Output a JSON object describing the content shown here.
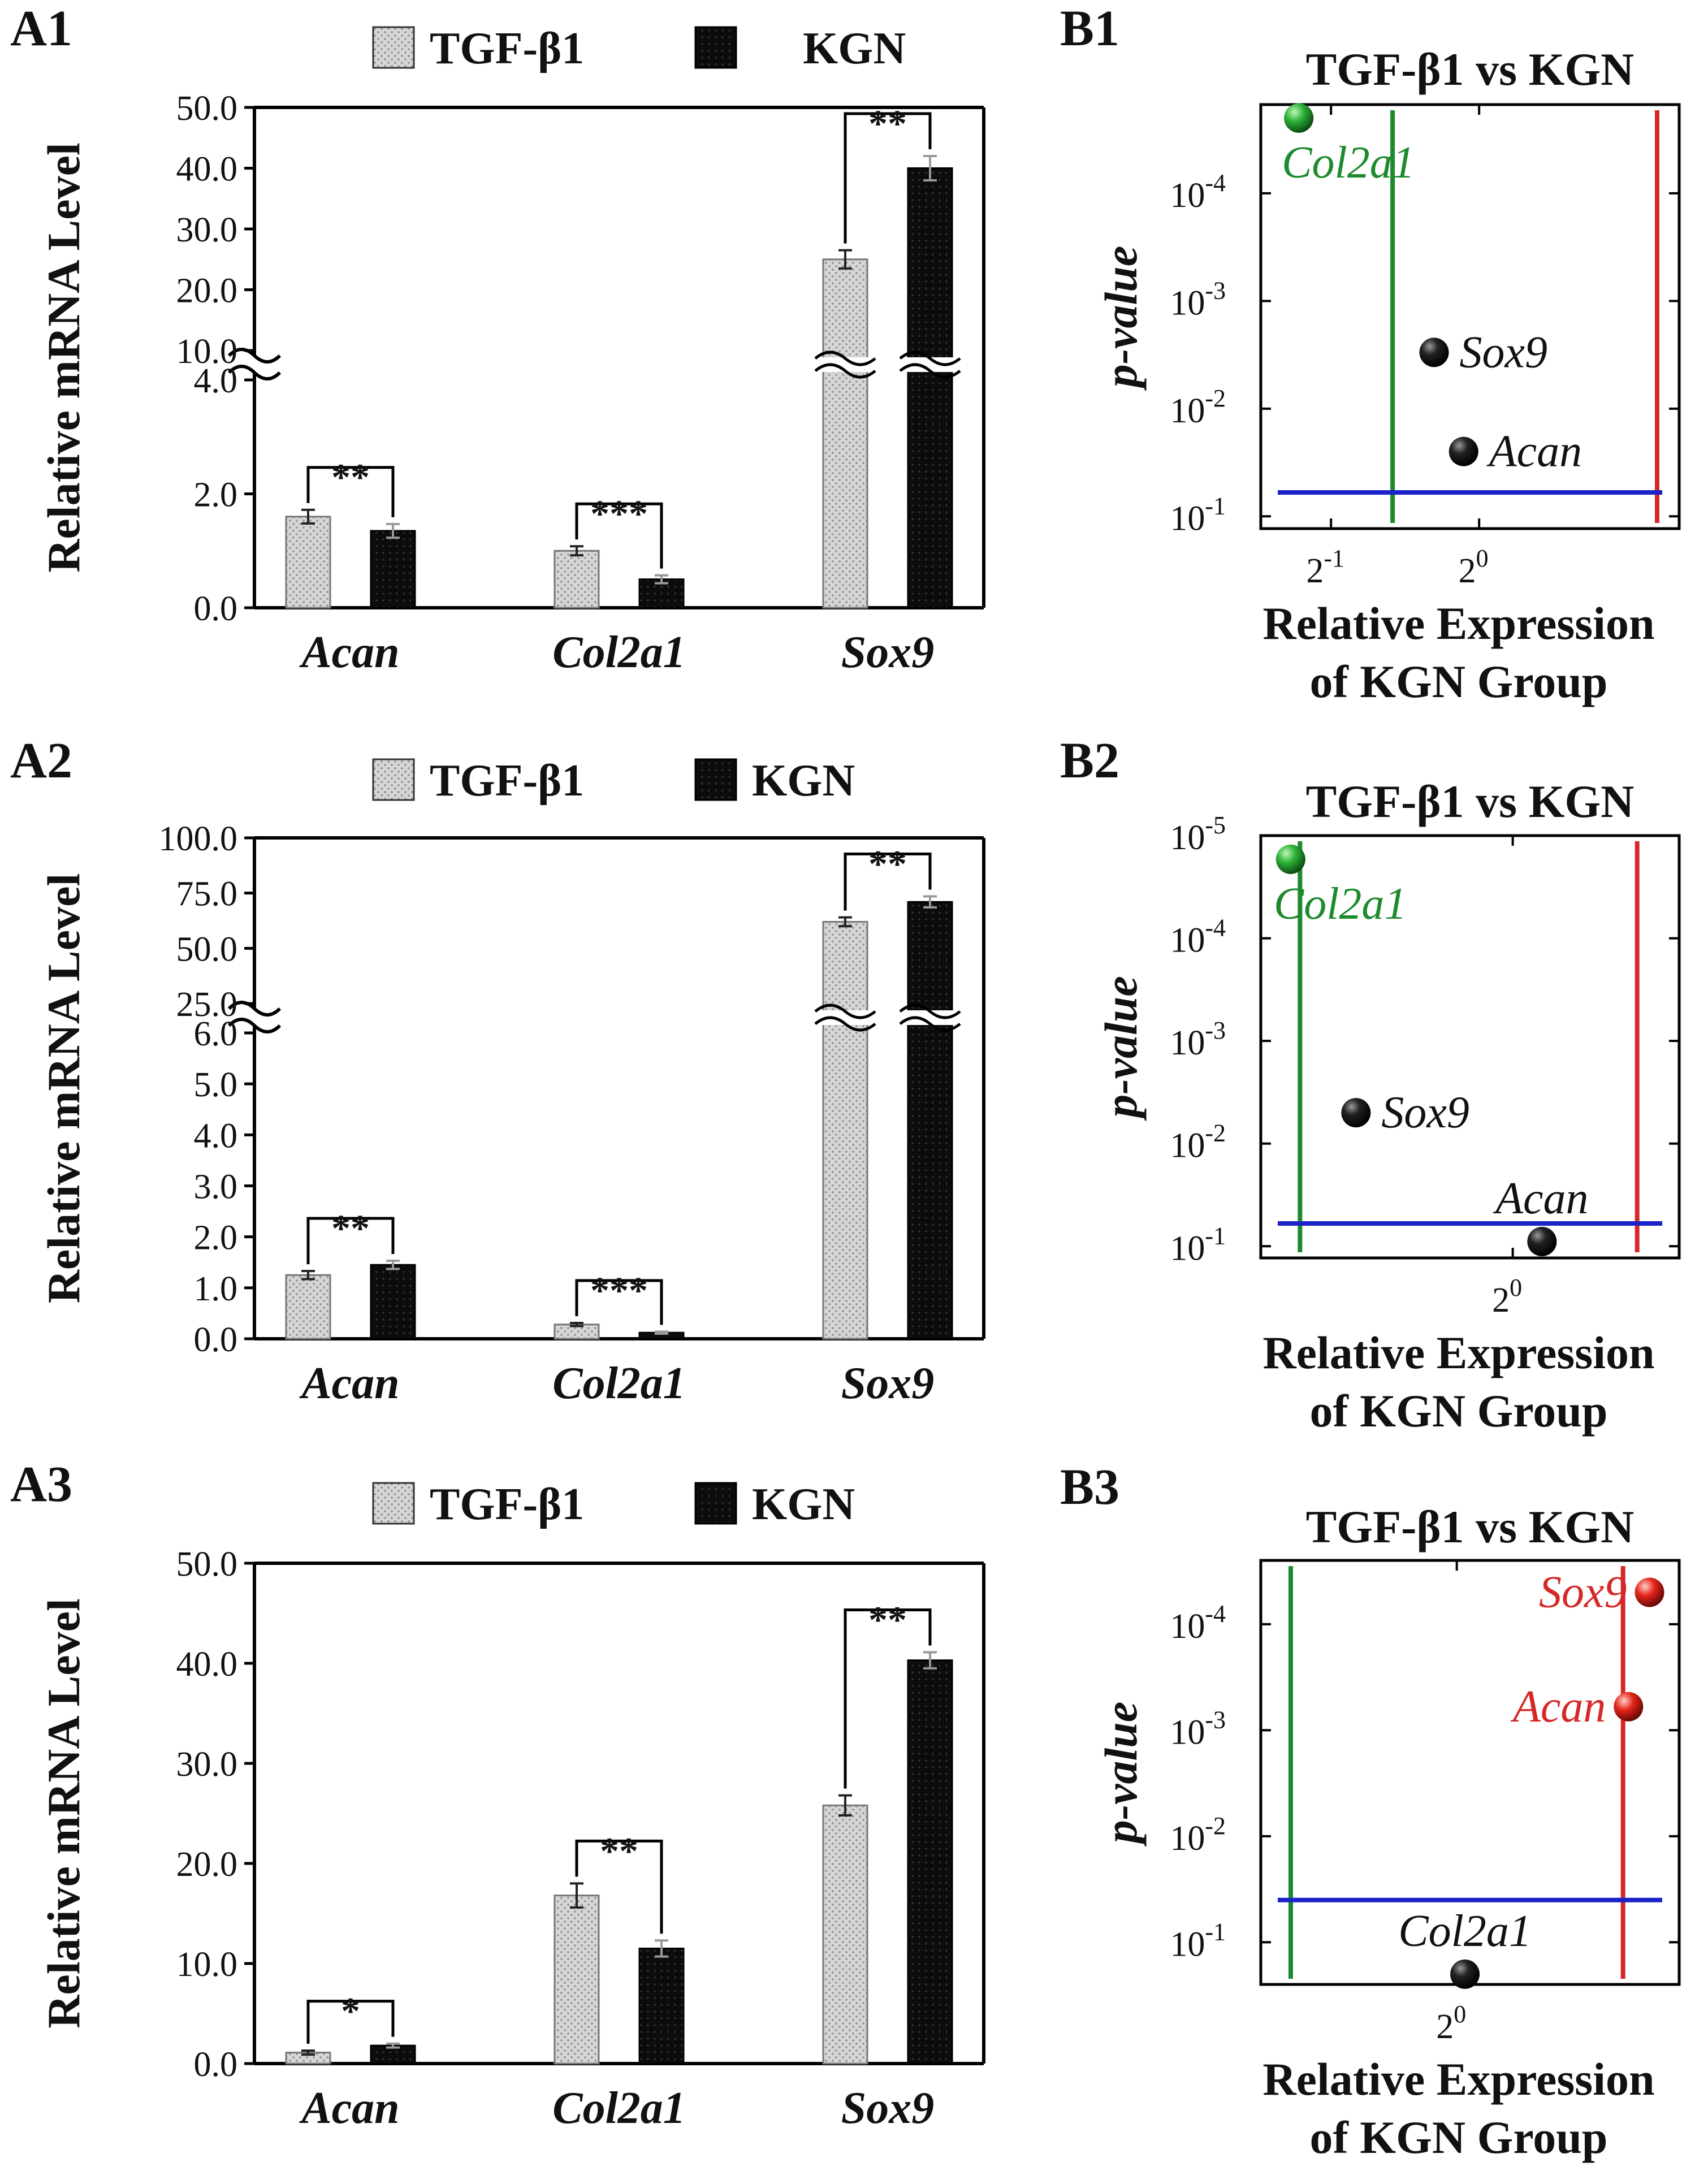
{
  "colors": {
    "tgf": "#cfcfcf",
    "kgn": "#111111",
    "green": "#1e8a2e",
    "red": "#d62828",
    "blue": "#1a22c8",
    "black_point": "#111111"
  },
  "chart_data": [
    {
      "id": "A1",
      "type": "bar",
      "panel_label": "A1",
      "ylabel": "Relative mRNA Level",
      "categories": [
        "Acan",
        "Col2a1",
        "Sox9"
      ],
      "legend": [
        "TGF-β1",
        "KGN"
      ],
      "series": [
        {
          "name": "TGF-β1",
          "values": [
            1.6,
            1.0,
            25.0
          ],
          "errors": [
            0.12,
            0.08,
            1.5
          ]
        },
        {
          "name": "KGN",
          "values": [
            1.35,
            0.5,
            40.0
          ],
          "errors": [
            0.12,
            0.07,
            2.0
          ]
        }
      ],
      "significance": [
        "**",
        "***",
        "**"
      ],
      "axis_break": true,
      "lower_ticks": [
        "0.0",
        "2.0",
        "4.0"
      ],
      "lower_range": [
        0,
        4
      ],
      "upper_ticks": [
        "10.0",
        "20.0",
        "30.0",
        "40.0",
        "50.0"
      ],
      "upper_range": [
        10,
        50
      ]
    },
    {
      "id": "A2",
      "type": "bar",
      "panel_label": "A2",
      "ylabel": "Relative mRNA Level",
      "categories": [
        "Acan",
        "Col2a1",
        "Sox9"
      ],
      "legend": [
        "TGF-β1",
        "KGN"
      ],
      "series": [
        {
          "name": "TGF-β1",
          "values": [
            1.25,
            0.28,
            62.0
          ],
          "errors": [
            0.08,
            0.03,
            2.0
          ]
        },
        {
          "name": "KGN",
          "values": [
            1.45,
            0.12,
            71.0
          ],
          "errors": [
            0.08,
            0.02,
            2.5
          ]
        }
      ],
      "significance": [
        "**",
        "***",
        "**"
      ],
      "axis_break": true,
      "lower_ticks": [
        "0.0",
        "1.0",
        "2.0",
        "3.0",
        "4.0",
        "5.0",
        "6.0"
      ],
      "lower_range": [
        0,
        6
      ],
      "upper_ticks": [
        "25.0",
        "50.0",
        "75.0",
        "100.0"
      ],
      "upper_range": [
        25,
        100
      ]
    },
    {
      "id": "A3",
      "type": "bar",
      "panel_label": "A3",
      "ylabel": "Relative mRNA Level",
      "categories": [
        "Acan",
        "Col2a1",
        "Sox9"
      ],
      "legend": [
        "TGF-β1",
        "KGN"
      ],
      "series": [
        {
          "name": "TGF-β1",
          "values": [
            1.1,
            16.8,
            25.8
          ],
          "errors": [
            0.2,
            1.2,
            1.0
          ]
        },
        {
          "name": "KGN",
          "values": [
            1.8,
            11.5,
            40.3
          ],
          "errors": [
            0.2,
            0.8,
            0.8
          ]
        }
      ],
      "significance": [
        "*",
        "**",
        "**"
      ],
      "axis_break": false,
      "ticks": [
        "0.0",
        "10.0",
        "20.0",
        "30.0",
        "40.0",
        "50.0"
      ],
      "ylim": [
        0,
        50
      ]
    },
    {
      "id": "B1",
      "type": "scatter",
      "panel_label": "B1",
      "title": "TGF-β1 vs KGN",
      "xlabel_line1": "Relative Expression",
      "xlabel_line2": "of KGN Group",
      "ylabel": "p-value",
      "x_scale": "log2",
      "y_scale": "log10 (reversed)",
      "xlim": [
        0.36,
        2.55
      ],
      "ylim": [
        1.5e-05,
        0.13
      ],
      "x_ticks": [
        {
          "value": 0.5,
          "base": "2",
          "exp": "-1"
        },
        {
          "value": 1,
          "base": "2",
          "exp": "0"
        }
      ],
      "y_ticks": [
        {
          "value": 0.1,
          "base": "10",
          "exp": "-1"
        },
        {
          "value": 0.01,
          "base": "10",
          "exp": "-2"
        },
        {
          "value": 0.001,
          "base": "10",
          "exp": "-3"
        },
        {
          "value": 0.0001,
          "base": "10",
          "exp": "-4"
        }
      ],
      "threshold_low_x": 0.667,
      "threshold_high_x": 2.3,
      "threshold_p": 0.06,
      "points": [
        {
          "name": "Col2a1",
          "x": 0.43,
          "p": 2e-05,
          "color": "green",
          "label_pos": "below"
        },
        {
          "name": "Sox9",
          "x": 0.81,
          "p": 0.003,
          "color": "black",
          "label_pos": "right"
        },
        {
          "name": "Acan",
          "x": 0.93,
          "p": 0.025,
          "color": "black",
          "label_pos": "right"
        }
      ]
    },
    {
      "id": "B2",
      "type": "scatter",
      "panel_label": "B2",
      "title": "TGF-β1 vs KGN",
      "xlabel_line1": "Relative Expression",
      "xlabel_line2": "of KGN Group",
      "ylabel": "p-value",
      "x_scale": "log2",
      "y_scale": "log10 (reversed)",
      "xlim": [
        0.44,
        1.72
      ],
      "ylim": [
        1e-05,
        0.13
      ],
      "x_ticks": [
        {
          "value": 1,
          "base": "2",
          "exp": "0"
        }
      ],
      "y_ticks": [
        {
          "value": 0.1,
          "base": "10",
          "exp": "-1"
        },
        {
          "value": 0.01,
          "base": "10",
          "exp": "-2"
        },
        {
          "value": 0.001,
          "base": "10",
          "exp": "-3"
        },
        {
          "value": 0.0001,
          "base": "10",
          "exp": "-4"
        },
        {
          "value": 1e-05,
          "base": "10",
          "exp": "-5"
        }
      ],
      "threshold_low_x": 0.5,
      "threshold_high_x": 1.5,
      "threshold_p": 0.06,
      "points": [
        {
          "name": "Col2a1",
          "x": 0.485,
          "p": 1.7e-05,
          "color": "green",
          "label_pos": "below"
        },
        {
          "name": "Sox9",
          "x": 0.6,
          "p": 0.005,
          "color": "black",
          "label_pos": "right"
        },
        {
          "name": "Acan",
          "x": 1.1,
          "p": 0.09,
          "color": "black",
          "label_pos": "above"
        }
      ]
    },
    {
      "id": "B3",
      "type": "scatter",
      "panel_label": "B3",
      "title": "TGF-β1 vs KGN",
      "xlabel_line1": "Relative Expression",
      "xlabel_line2": "of KGN Group",
      "ylabel": "p-value",
      "x_scale": "log2",
      "y_scale": "log10 (reversed)",
      "xlim": [
        0.62,
        1.72
      ],
      "ylim": [
        2.5e-05,
        0.25
      ],
      "x_ticks": [
        {
          "value": 1,
          "base": "2",
          "exp": "0"
        }
      ],
      "y_ticks": [
        {
          "value": 0.1,
          "base": "10",
          "exp": "-1"
        },
        {
          "value": 0.01,
          "base": "10",
          "exp": "-2"
        },
        {
          "value": 0.001,
          "base": "10",
          "exp": "-3"
        },
        {
          "value": 0.0001,
          "base": "10",
          "exp": "-4"
        }
      ],
      "threshold_low_x": 0.667,
      "threshold_high_x": 1.5,
      "threshold_p": 0.04,
      "points": [
        {
          "name": "Sox9",
          "x": 1.6,
          "p": 5e-05,
          "color": "red",
          "label_pos": "left"
        },
        {
          "name": "Acan",
          "x": 1.52,
          "p": 0.0006,
          "color": "red",
          "label_pos": "left"
        },
        {
          "name": "Col2a1",
          "x": 1.02,
          "p": 0.2,
          "color": "black",
          "label_pos": "above"
        }
      ]
    }
  ]
}
